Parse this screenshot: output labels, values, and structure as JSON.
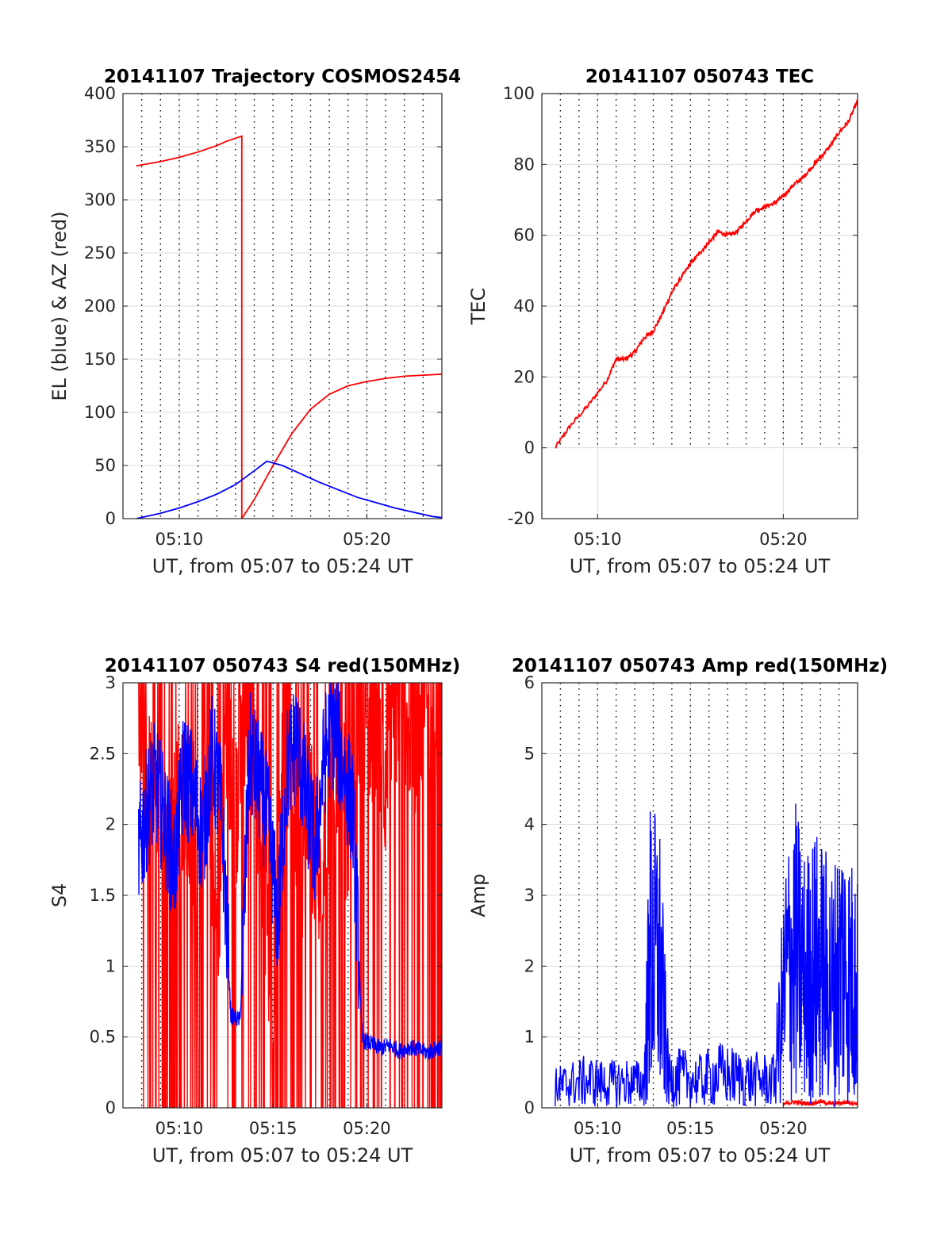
{
  "figure": {
    "panels": [
      {
        "title": "20141107 Trajectory COSMOS2454",
        "xlabel": "UT, from 05:07 to 05:24 UT",
        "ylabel": "EL (blue) & AZ (red)",
        "y_tick_labels": [
          "0",
          "50",
          "100",
          "150",
          "200",
          "250",
          "300",
          "350",
          "400"
        ],
        "x_tick_labels": [
          "05:10",
          "05:20"
        ]
      },
      {
        "title": "20141107 050743 TEC",
        "xlabel": "UT, from 05:07 to 05:24 UT",
        "ylabel": "TEC",
        "y_tick_labels": [
          "-20",
          "0",
          "20",
          "40",
          "60",
          "80",
          "100"
        ],
        "x_tick_labels": [
          "05:10",
          "05:20"
        ]
      },
      {
        "title": "20141107 050743 S4 red(150MHz)",
        "xlabel": "UT, from 05:07 to 05:24 UT",
        "ylabel": "S4",
        "y_tick_labels": [
          "0",
          "0.5",
          "1",
          "1.5",
          "2",
          "2.5",
          "3"
        ],
        "x_tick_labels": [
          "05:10",
          "05:15",
          "05:20"
        ]
      },
      {
        "title": "20141107 050743 Amp red(150MHz)",
        "xlabel": "UT, from 05:07 to 05:24 UT",
        "ylabel": "Amp",
        "y_tick_labels": [
          "0",
          "1",
          "2",
          "3",
          "4",
          "5",
          "6"
        ],
        "x_tick_labels": [
          "05:10",
          "05:15",
          "05:20"
        ]
      }
    ]
  },
  "chart_data": [
    {
      "type": "line",
      "title": "20141107 Trajectory COSMOS2454",
      "xlabel": "UT, from 05:07 to 05:24 UT",
      "ylabel": "EL (blue) & AZ (red)",
      "xlim": [
        "05:07:00",
        "05:24:00"
      ],
      "ylim": [
        0,
        400
      ],
      "x_ticks": [
        "05:10",
        "05:20"
      ],
      "y_ticks": [
        0,
        50,
        100,
        150,
        200,
        250,
        300,
        350,
        400
      ],
      "grid": true,
      "series": [
        {
          "color": "#ff0000",
          "x": [
            "05:07:43",
            "05:09:00",
            "05:10:00",
            "05:11:00",
            "05:12:00",
            "05:12:30",
            "05:13:00",
            "05:13:20",
            "05:13:20",
            "05:14:00",
            "05:15:00",
            "05:16:00",
            "05:17:00",
            "05:18:00",
            "05:19:00",
            "05:20:00",
            "05:21:00",
            "05:22:00",
            "05:23:00",
            "05:24:00"
          ],
          "y": [
            332,
            336,
            340,
            345,
            351,
            355,
            358,
            360,
            0,
            18,
            50,
            80,
            103,
            117,
            125,
            129,
            132,
            134,
            135,
            136
          ]
        },
        {
          "color": "#0000ff",
          "x": [
            "05:07:43",
            "05:09:00",
            "05:10:00",
            "05:11:00",
            "05:12:00",
            "05:13:00",
            "05:14:00",
            "05:14:40",
            "05:15:30",
            "05:16:30",
            "05:17:30",
            "05:18:30",
            "05:19:30",
            "05:20:30",
            "05:21:30",
            "05:22:30",
            "05:23:30",
            "05:24:00"
          ],
          "y": [
            0,
            5,
            10,
            16,
            23,
            32,
            45,
            54,
            50,
            42,
            34,
            27,
            20,
            15,
            10,
            6,
            2,
            1
          ]
        }
      ]
    },
    {
      "type": "line",
      "title": "20141107 050743 TEC",
      "xlabel": "UT, from 05:07 to 05:24 UT",
      "ylabel": "TEC",
      "xlim": [
        "05:07:00",
        "05:24:00"
      ],
      "ylim": [
        -20,
        100
      ],
      "x_ticks": [
        "05:10",
        "05:20"
      ],
      "y_ticks": [
        -20,
        0,
        20,
        40,
        60,
        80,
        100
      ],
      "grid": true,
      "series": [
        {
          "color": "#ff0000",
          "x": [
            "05:07:43",
            "05:08:30",
            "05:09:30",
            "05:10:30",
            "05:11:00",
            "05:11:30",
            "05:12:00",
            "05:12:30",
            "05:13:00",
            "05:13:30",
            "05:14:00",
            "05:14:30",
            "05:15:00",
            "05:15:30",
            "05:16:00",
            "05:16:30",
            "05:17:00",
            "05:17:30",
            "05:18:00",
            "05:18:30",
            "05:19:00",
            "05:19:30",
            "05:20:00",
            "05:20:30",
            "05:21:00",
            "05:21:30",
            "05:22:00",
            "05:22:30",
            "05:23:00",
            "05:23:30",
            "05:24:00"
          ],
          "y": [
            0,
            6,
            12,
            19,
            25,
            25,
            27,
            31,
            33,
            38,
            44,
            48,
            52,
            55,
            58,
            61,
            60,
            61,
            64,
            67,
            68,
            69,
            71,
            74,
            76,
            79,
            82,
            85,
            89,
            92,
            98
          ]
        }
      ]
    },
    {
      "type": "line",
      "title": "20141107 050743 S4 red(150MHz)",
      "xlabel": "UT, from 05:07 to 05:24 UT",
      "ylabel": "S4",
      "xlim": [
        "05:07:00",
        "05:24:00"
      ],
      "ylim": [
        0,
        3
      ],
      "x_ticks": [
        "05:10",
        "05:15",
        "05:20"
      ],
      "y_ticks": [
        0,
        0.5,
        1,
        1.5,
        2,
        2.5,
        3
      ],
      "grid": true,
      "series": [
        {
          "color": "#ff0000",
          "x": [
            "05:07:50",
            "05:08:30",
            "05:09:00",
            "05:09:30",
            "05:10:00",
            "05:10:30",
            "05:11:00",
            "05:11:30",
            "05:12:00",
            "05:12:30",
            "05:13:00",
            "05:13:30",
            "05:14:00",
            "05:14:30",
            "05:15:00",
            "05:15:30",
            "05:16:00",
            "05:16:30",
            "05:17:00",
            "05:17:30",
            "05:18:00",
            "05:18:30",
            "05:19:00",
            "05:19:30",
            "05:20:00",
            "05:20:30",
            "05:21:00",
            "05:21:30",
            "05:22:00",
            "05:22:30",
            "05:23:00",
            "05:23:30",
            "05:24:00"
          ],
          "y": [
            2.6,
            2.2,
            2.0,
            1.8,
            2.3,
            2.0,
            1.5,
            2.4,
            1.2,
            2.7,
            2.0,
            2.8,
            2.6,
            1.6,
            0.8,
            2.7,
            2.3,
            1.7,
            2.1,
            1.4,
            2.0,
            2.5,
            1.9,
            2.8,
            2.6,
            2.8,
            2.4,
            2.7,
            2.9,
            2.6,
            2.8,
            2.7,
            2.7
          ]
        },
        {
          "color": "#0000ff",
          "x": [
            "05:07:50",
            "05:08:15",
            "05:08:45",
            "05:09:15",
            "05:09:45",
            "05:10:15",
            "05:10:45",
            "05:11:15",
            "05:11:45",
            "05:12:15",
            "05:12:45",
            "05:13:15",
            "05:13:45",
            "05:14:15",
            "05:14:45",
            "05:15:15",
            "05:15:45",
            "05:16:15",
            "05:16:45",
            "05:17:15",
            "05:17:45",
            "05:18:15",
            "05:18:45",
            "05:19:15",
            "05:19:45",
            "05:20:15",
            "05:20:45",
            "05:21:15",
            "05:21:45",
            "05:22:15",
            "05:22:45",
            "05:23:15",
            "05:23:45",
            "05:24:00"
          ],
          "y": [
            1.8,
            2.1,
            2.3,
            2.0,
            1.7,
            2.4,
            2.2,
            1.9,
            2.5,
            2.1,
            0.65,
            0.62,
            2.5,
            2.3,
            2.0,
            1.3,
            2.4,
            2.6,
            2.2,
            1.8,
            2.5,
            2.7,
            2.4,
            2.1,
            0.48,
            0.45,
            0.42,
            0.44,
            0.4,
            0.43,
            0.41,
            0.39,
            0.42,
            0.43
          ]
        }
      ]
    },
    {
      "type": "line",
      "title": "20141107 050743 Amp red(150MHz)",
      "xlabel": "UT, from 05:07 to 05:24 UT",
      "ylabel": "Amp",
      "xlim": [
        "05:07:00",
        "05:24:00"
      ],
      "ylim": [
        0,
        6
      ],
      "x_ticks": [
        "05:10",
        "05:15",
        "05:20"
      ],
      "y_ticks": [
        0,
        1,
        2,
        3,
        4,
        5,
        6
      ],
      "grid": true,
      "series": [
        {
          "color": "#ff0000",
          "x": [
            "05:20:00",
            "05:20:30",
            "05:21:00",
            "05:21:30",
            "05:22:00",
            "05:22:30",
            "05:23:00",
            "05:23:30",
            "05:24:00"
          ],
          "y": [
            0.05,
            0.08,
            0.07,
            0.06,
            0.09,
            0.06,
            0.07,
            0.08,
            0.06
          ]
        },
        {
          "color": "#0000ff",
          "x": [
            "05:07:43",
            "05:08:30",
            "05:09:30",
            "05:10:30",
            "05:11:30",
            "05:12:30",
            "05:12:50",
            "05:13:20",
            "05:13:50",
            "05:14:30",
            "05:15:30",
            "05:16:30",
            "05:17:30",
            "05:18:30",
            "05:19:30",
            "05:20:10",
            "05:20:40",
            "05:21:10",
            "05:21:40",
            "05:22:10",
            "05:22:40",
            "05:23:10",
            "05:23:40",
            "05:24:00"
          ],
          "y": [
            0.3,
            0.35,
            0.4,
            0.35,
            0.38,
            0.35,
            2.3,
            2.2,
            0.4,
            0.45,
            0.4,
            0.5,
            0.45,
            0.42,
            0.4,
            2.0,
            2.3,
            1.9,
            2.1,
            2.0,
            1.8,
            2.2,
            1.9,
            1.7
          ]
        }
      ]
    }
  ]
}
